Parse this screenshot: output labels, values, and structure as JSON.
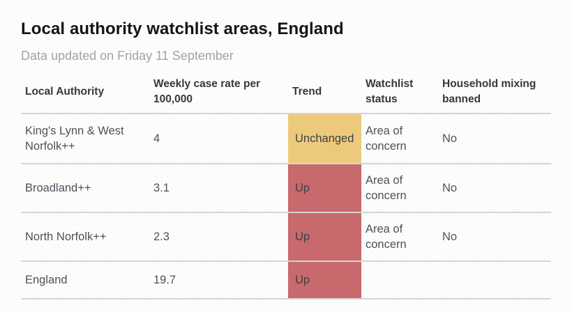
{
  "header": {
    "title": "Local authority watchlist areas, England",
    "subtitle": "Data updated on Friday 11 September"
  },
  "chart_data": {
    "type": "table",
    "title": "Local authority watchlist areas, England",
    "subtitle": "Data updated on Friday 11 September",
    "columns": [
      "Local Authority",
      "Weekly case rate per 100,000",
      "Trend",
      "Watchlist status",
      "Household mixing banned"
    ],
    "rows": [
      {
        "local_authority": "King's Lynn & West Norfolk++",
        "weekly_case_rate_per_100k": "4",
        "trend": "Unchanged",
        "trend_color": "#edc97c",
        "watchlist_status": "Area of concern",
        "household_mixing_banned": "No"
      },
      {
        "local_authority": "Broadland++",
        "weekly_case_rate_per_100k": "3.1",
        "trend": "Up",
        "trend_color": "#c7696d",
        "watchlist_status": "Area of concern",
        "household_mixing_banned": "No"
      },
      {
        "local_authority": "North Norfolk++",
        "weekly_case_rate_per_100k": "2.3",
        "trend": "Up",
        "trend_color": "#c7696d",
        "watchlist_status": "Area of concern",
        "household_mixing_banned": "No"
      },
      {
        "local_authority": "England",
        "weekly_case_rate_per_100k": "19.7",
        "trend": "Up",
        "trend_color": "#c7696d",
        "watchlist_status": "",
        "household_mixing_banned": ""
      }
    ],
    "status_colors": {
      "up": "#c7696d",
      "unchanged": "#edc97c"
    },
    "layout": {
      "grid": "off",
      "divider_color": "#d4d4d4"
    }
  }
}
